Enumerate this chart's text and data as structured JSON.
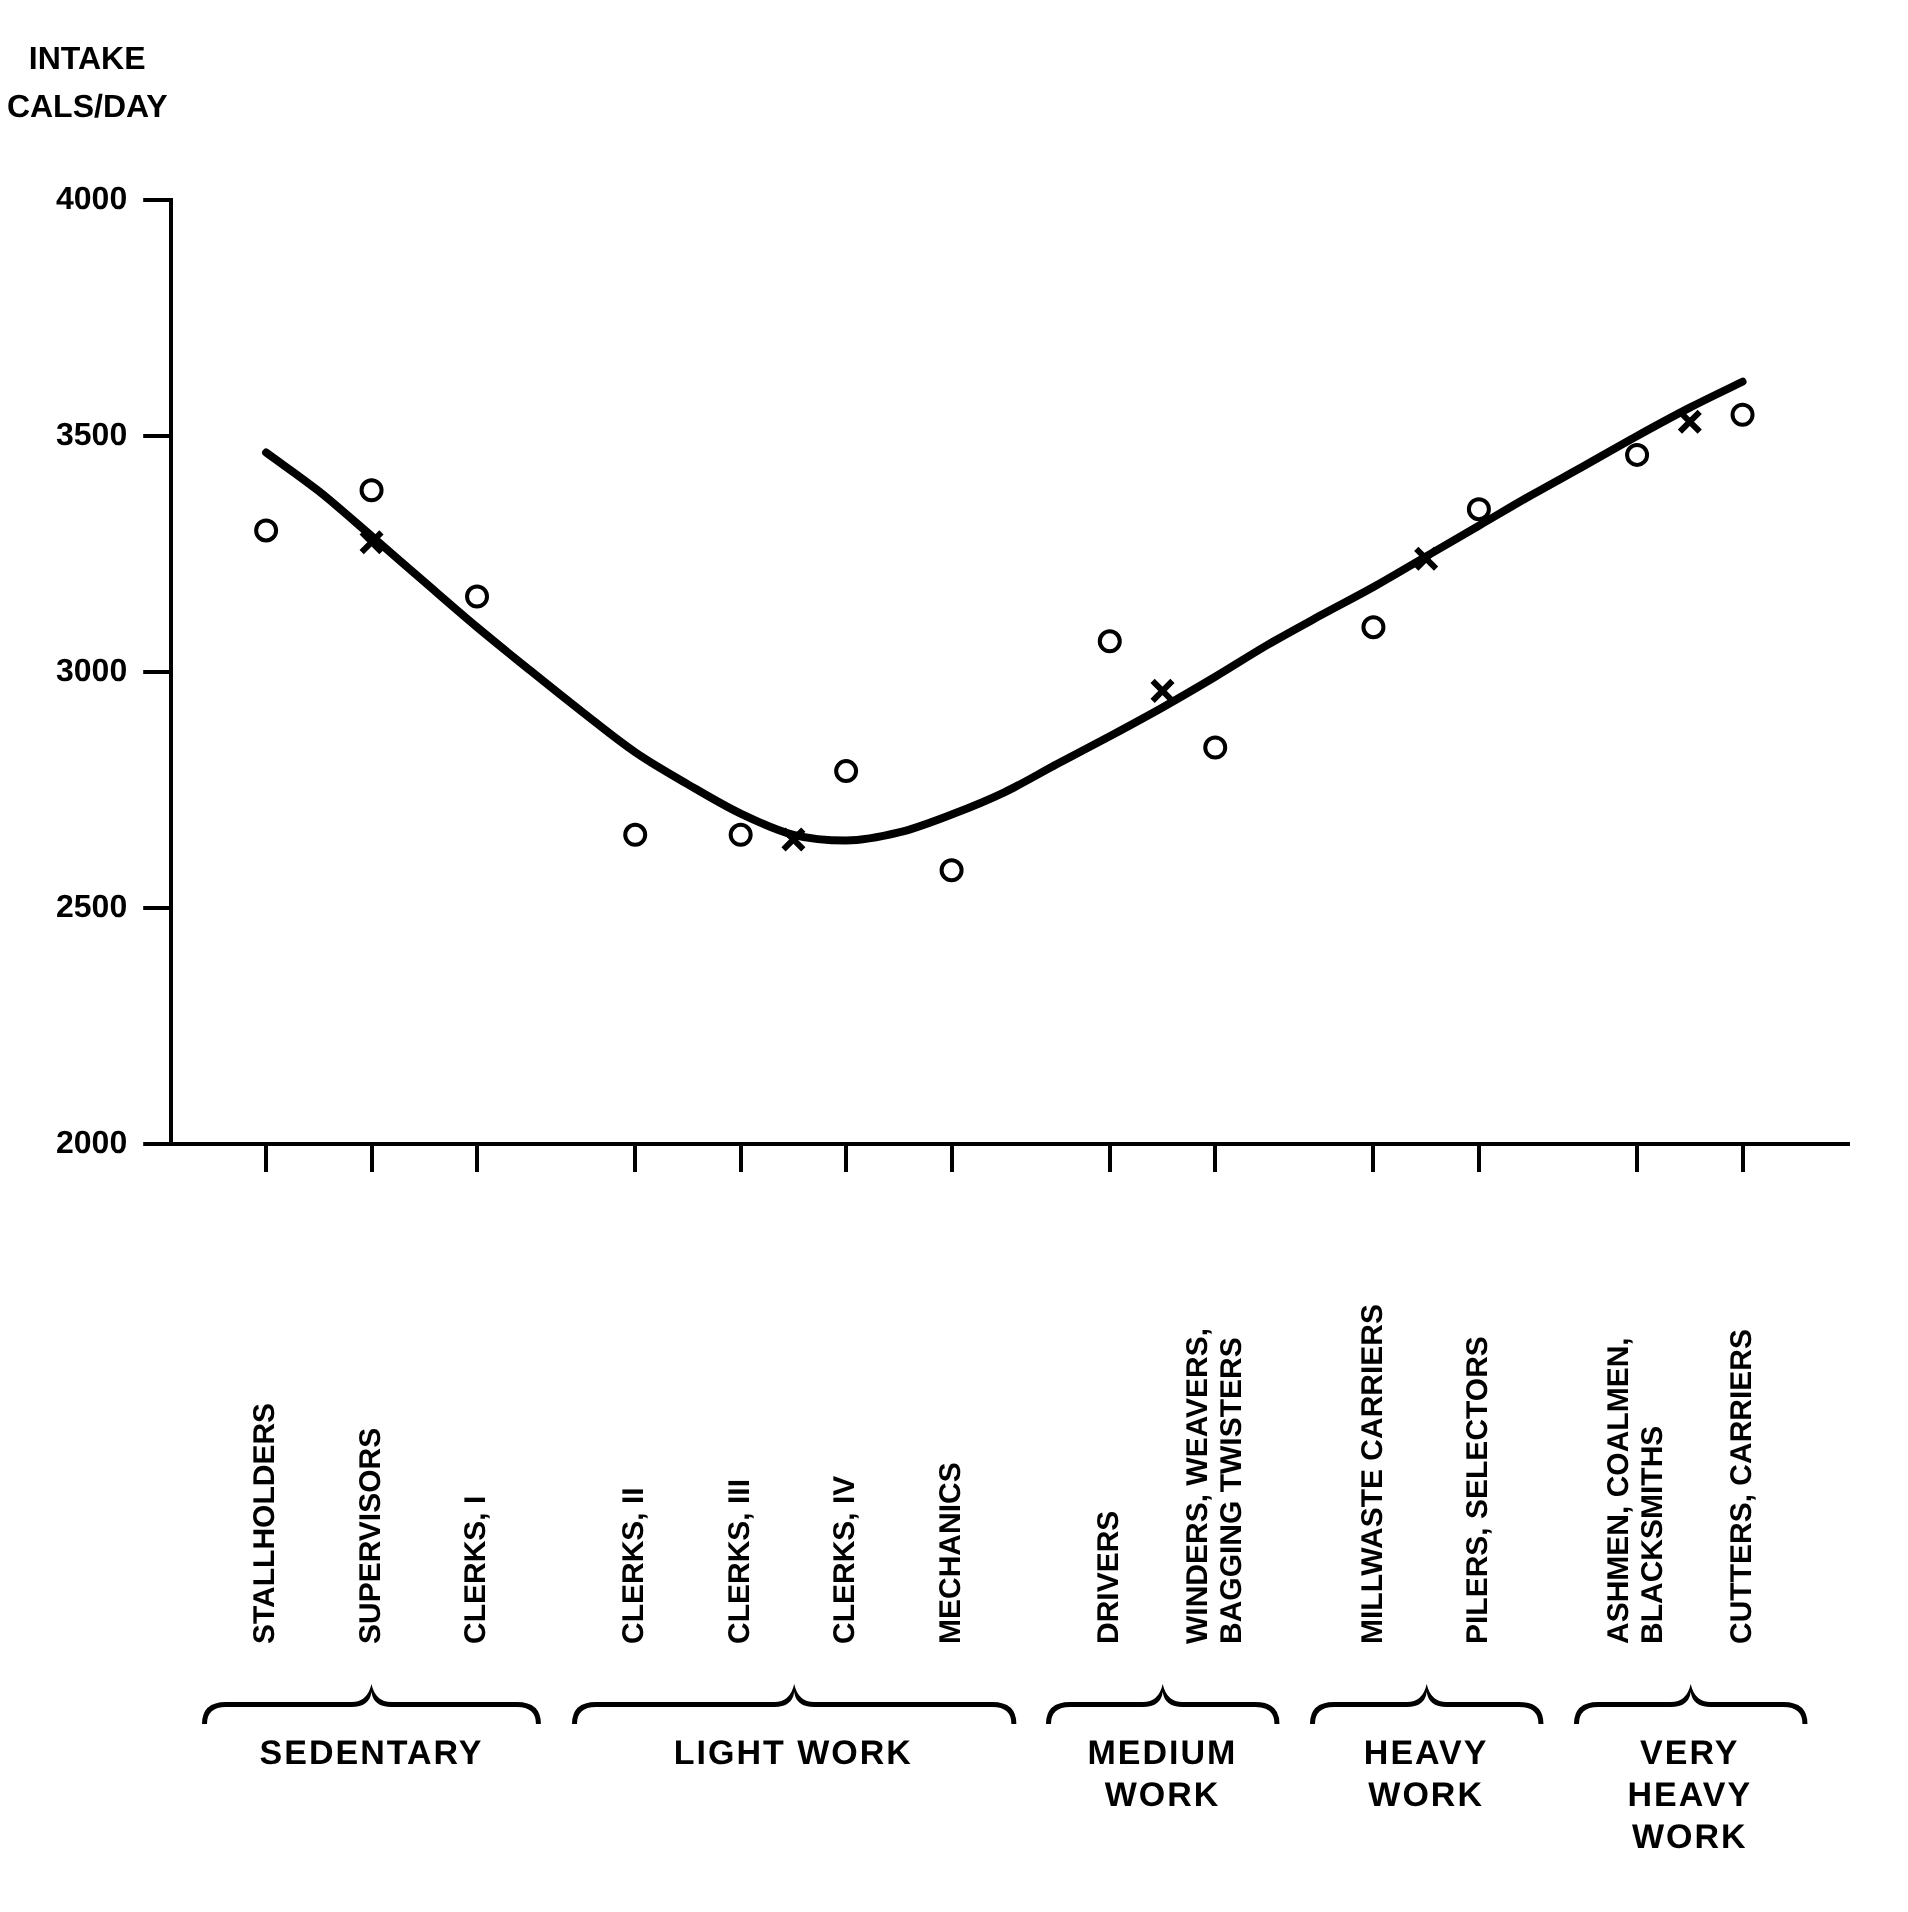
{
  "chart_data": {
    "type": "scatter",
    "ylabel": "INTAKE\nCALS/DAY",
    "ylim": [
      2000,
      4000
    ],
    "yticks": [
      2000,
      2500,
      3000,
      3500,
      4000
    ],
    "categories": [
      "STALLHOLDERS",
      null,
      "SUPERVISORS",
      null,
      "CLERKS, I",
      null,
      null,
      "CLERKS, II",
      null,
      "CLERKS, III",
      null,
      "CLERKS, IV",
      null,
      "MECHANICS",
      null,
      null,
      "DRIVERS",
      null,
      "WINDERS, WEAVERS,\nBAGGING TWISTERS",
      null,
      null,
      "MILLWASTE CARRIERS",
      null,
      "PILERS, SELECTORS",
      null,
      null,
      "ASHMEN, COALMEN,\nBLACKSMITHS",
      null,
      "CUTTERS, CARRIERS"
    ],
    "grid": false,
    "legend": false,
    "annotations": [
      "SEDENTARY",
      "LIGHT WORK",
      "MEDIUM\nWORK",
      "HEAVY\nWORK",
      "VERY\nHEAVY\nWORK"
    ],
    "series": [
      {
        "type": "scatter",
        "marker": "circle",
        "color": "#000000",
        "values": [
          3300,
          null,
          3385,
          null,
          3160,
          null,
          null,
          2655,
          null,
          2655,
          null,
          2790,
          null,
          2580,
          null,
          null,
          3065,
          null,
          2840,
          null,
          null,
          3095,
          null,
          3345,
          null,
          null,
          3460,
          null,
          3545
        ]
      },
      {
        "type": "scatter",
        "marker": "cross",
        "color": "#000000",
        "values": [
          null,
          null,
          3275,
          null,
          null,
          null,
          null,
          null,
          null,
          null,
          2645,
          null,
          null,
          null,
          null,
          null,
          null,
          2960,
          null,
          null,
          null,
          null,
          3240,
          null,
          null,
          null,
          null,
          3530,
          null
        ]
      },
      {
        "type": "line",
        "marker": "none",
        "line_style": "solid",
        "color": "#000000",
        "values": [
          3465,
          3383,
          3288,
          3191,
          3095,
          3004,
          2915,
          2830,
          2762,
          2700,
          2655,
          2643,
          2660,
          2698,
          2745,
          2805,
          2864,
          2925,
          2990,
          3058,
          3120,
          3180,
          3245,
          3310,
          3375,
          3437,
          3500,
          3560,
          3615
        ]
      }
    ]
  }
}
